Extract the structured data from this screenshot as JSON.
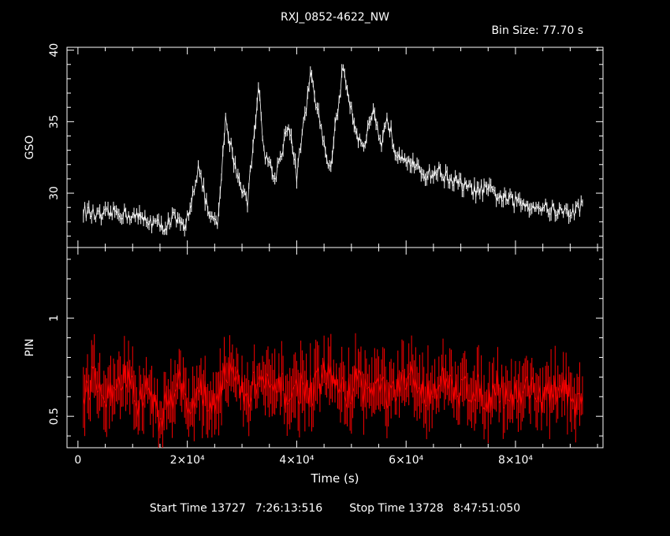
{
  "header": {
    "title": "RXJ_0852-4622_NW",
    "bin_size": "Bin Size: 77.70 s"
  },
  "footer": {
    "start_label": "Start Time 13727",
    "start_time": "7:26:13:516",
    "stop_label": "Stop Time 13728",
    "stop_time": "8:47:51:050"
  },
  "colors": {
    "gso": "#ffffff",
    "pin": "#ff0000",
    "axes": "#ffffff"
  },
  "chart_data": [
    {
      "type": "line",
      "panel": "top",
      "ylabel": "GSO",
      "xlabel": "",
      "xlim": [
        -2000,
        96000
      ],
      "ylim": [
        26.2,
        40.2
      ],
      "yticks": [
        30,
        35,
        40
      ],
      "series": [
        {
          "x": [
            1000,
            4000,
            7000,
            10000,
            13000,
            15500,
            17500,
            19500,
            22000,
            24000,
            25500,
            27000,
            29000,
            31000,
            33000,
            34000,
            36000,
            38500,
            40000,
            42500,
            44500,
            46000,
            48500,
            50500,
            52000,
            54000,
            55500,
            56500,
            58000,
            60000,
            62000,
            64000,
            66000,
            68000,
            70000,
            72000,
            75000,
            78000,
            81000,
            84000,
            87000,
            90000,
            92500
          ],
          "values": [
            28.8,
            28.3,
            28.7,
            28.4,
            28.1,
            27.6,
            28.3,
            27.4,
            31.8,
            28.4,
            27.6,
            35.0,
            31.5,
            29.3,
            37.5,
            33.0,
            31.0,
            35.0,
            31.2,
            38.2,
            34.5,
            31.5,
            38.8,
            35.0,
            33.0,
            35.5,
            33.0,
            35.5,
            33.0,
            32.6,
            31.6,
            31.3,
            31.5,
            31.0,
            30.6,
            30.2,
            30.2,
            29.6,
            29.3,
            29.1,
            28.8,
            28.6,
            29.2
          ]
        }
      ]
    },
    {
      "type": "line",
      "panel": "bottom",
      "ylabel": "PIN",
      "xlabel": "Time (s)",
      "xlim": [
        -2000,
        96000
      ],
      "ylim": [
        0.34,
        1.36
      ],
      "yticks": [
        0.5,
        1
      ],
      "xticks": [
        0,
        20000,
        40000,
        60000,
        80000
      ],
      "xtick_labels": [
        "0",
        "2×10⁴",
        "4×10⁴",
        "6×10⁴",
        "8×10⁴"
      ],
      "series": [
        {
          "x": [
            1000,
            3000,
            5000,
            7000,
            9000,
            11000,
            13000,
            15000,
            17000,
            18500,
            20000,
            22000,
            24000,
            25500,
            27000,
            29000,
            31000,
            33000,
            35000,
            37000,
            39000,
            41000,
            43000,
            45000,
            47000,
            49000,
            51000,
            53000,
            55000,
            57000,
            59000,
            61000,
            63000,
            65000,
            67000,
            69000,
            71000,
            73000,
            75000,
            77000,
            79000,
            81000,
            83000,
            85000,
            87000,
            89000,
            91000,
            92500
          ],
          "values": [
            0.62,
            0.7,
            0.58,
            0.65,
            0.72,
            0.55,
            0.66,
            0.48,
            0.6,
            0.75,
            0.5,
            0.66,
            0.55,
            0.62,
            0.74,
            0.68,
            0.58,
            0.7,
            0.62,
            0.64,
            0.6,
            0.66,
            0.62,
            0.72,
            0.68,
            0.6,
            0.7,
            0.62,
            0.66,
            0.6,
            0.64,
            0.7,
            0.62,
            0.65,
            0.68,
            0.6,
            0.66,
            0.63,
            0.6,
            0.65,
            0.6,
            0.62,
            0.66,
            0.58,
            0.62,
            0.66,
            0.5,
            0.62
          ]
        }
      ]
    }
  ]
}
